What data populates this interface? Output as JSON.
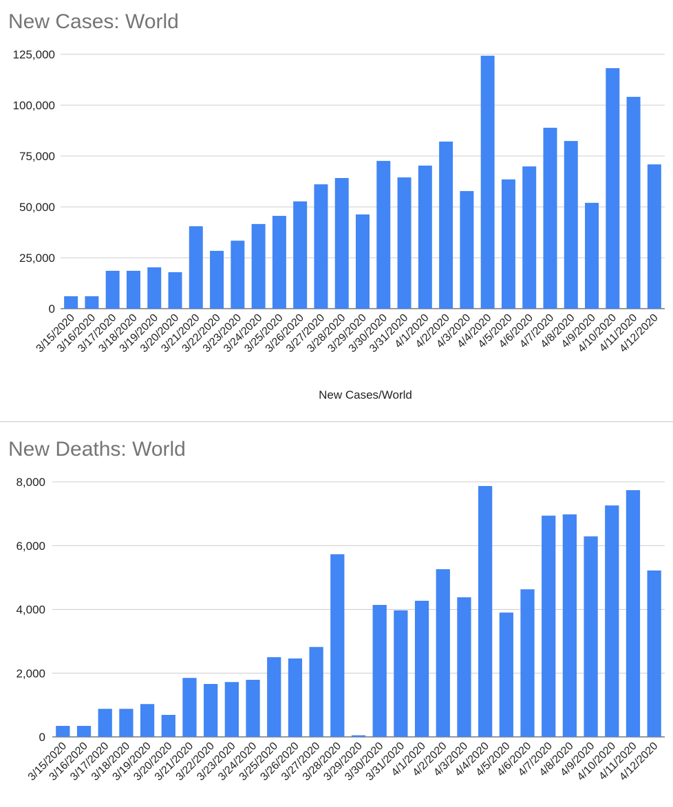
{
  "colors": {
    "bar": "#4285f4",
    "title": "#757575",
    "grid": "#cccccc",
    "text": "#222222"
  },
  "chart_data": [
    {
      "type": "bar",
      "title": "New Cases: World",
      "xlabel": "New Cases/World",
      "ylabel": "",
      "ylim": [
        0,
        125000
      ],
      "yticks": [
        0,
        25000,
        50000,
        75000,
        100000,
        125000
      ],
      "ytick_labels": [
        "0",
        "25,000",
        "50,000",
        "75,000",
        "100,000",
        "125,000"
      ],
      "grid": true,
      "categories": [
        "3/15/2020",
        "3/16/2020",
        "3/17/2020",
        "3/18/2020",
        "3/19/2020",
        "3/20/2020",
        "3/21/2020",
        "3/22/2020",
        "3/23/2020",
        "3/24/2020",
        "3/25/2020",
        "3/26/2020",
        "3/27/2020",
        "3/28/2020",
        "3/29/2020",
        "3/30/2020",
        "3/31/2020",
        "4/1/2020",
        "4/2/2020",
        "4/3/2020",
        "4/4/2020",
        "4/5/2020",
        "4/6/2020",
        "4/7/2020",
        "4/8/2020",
        "4/9/2020",
        "4/10/2020",
        "4/11/2020",
        "4/12/2020"
      ],
      "values": [
        6100,
        6100,
        18600,
        18600,
        20300,
        17900,
        40500,
        28400,
        33400,
        41600,
        45600,
        52700,
        61100,
        64200,
        46300,
        72600,
        64500,
        70300,
        82100,
        57800,
        124300,
        63500,
        69900,
        88900,
        82400,
        52000,
        118200,
        104100,
        70900
      ]
    },
    {
      "type": "bar",
      "title": "New Deaths: World",
      "xlabel": "",
      "ylabel": "",
      "ylim": [
        0,
        8000
      ],
      "yticks": [
        0,
        2000,
        4000,
        6000,
        8000
      ],
      "ytick_labels": [
        "0",
        "2,000",
        "4,000",
        "6,000",
        "8,000"
      ],
      "grid": true,
      "categories": [
        "3/15/2020",
        "3/16/2020",
        "3/17/2020",
        "3/18/2020",
        "3/19/2020",
        "3/20/2020",
        "3/21/2020",
        "3/22/2020",
        "3/23/2020",
        "3/24/2020",
        "3/25/2020",
        "3/26/2020",
        "3/27/2020",
        "3/28/2020",
        "3/29/2020",
        "3/30/2020",
        "3/31/2020",
        "4/1/2020",
        "4/2/2020",
        "4/3/2020",
        "4/4/2020",
        "4/5/2020",
        "4/6/2020",
        "4/7/2020",
        "4/8/2020",
        "4/9/2020",
        "4/10/2020",
        "4/11/2020",
        "4/12/2020"
      ],
      "values": [
        345,
        345,
        880,
        880,
        1030,
        690,
        1850,
        1660,
        1720,
        1790,
        2500,
        2460,
        2820,
        5730,
        50,
        4140,
        3970,
        4270,
        5260,
        4380,
        7870,
        3900,
        4630,
        6940,
        6980,
        6290,
        7260,
        7740,
        5220
      ]
    }
  ]
}
